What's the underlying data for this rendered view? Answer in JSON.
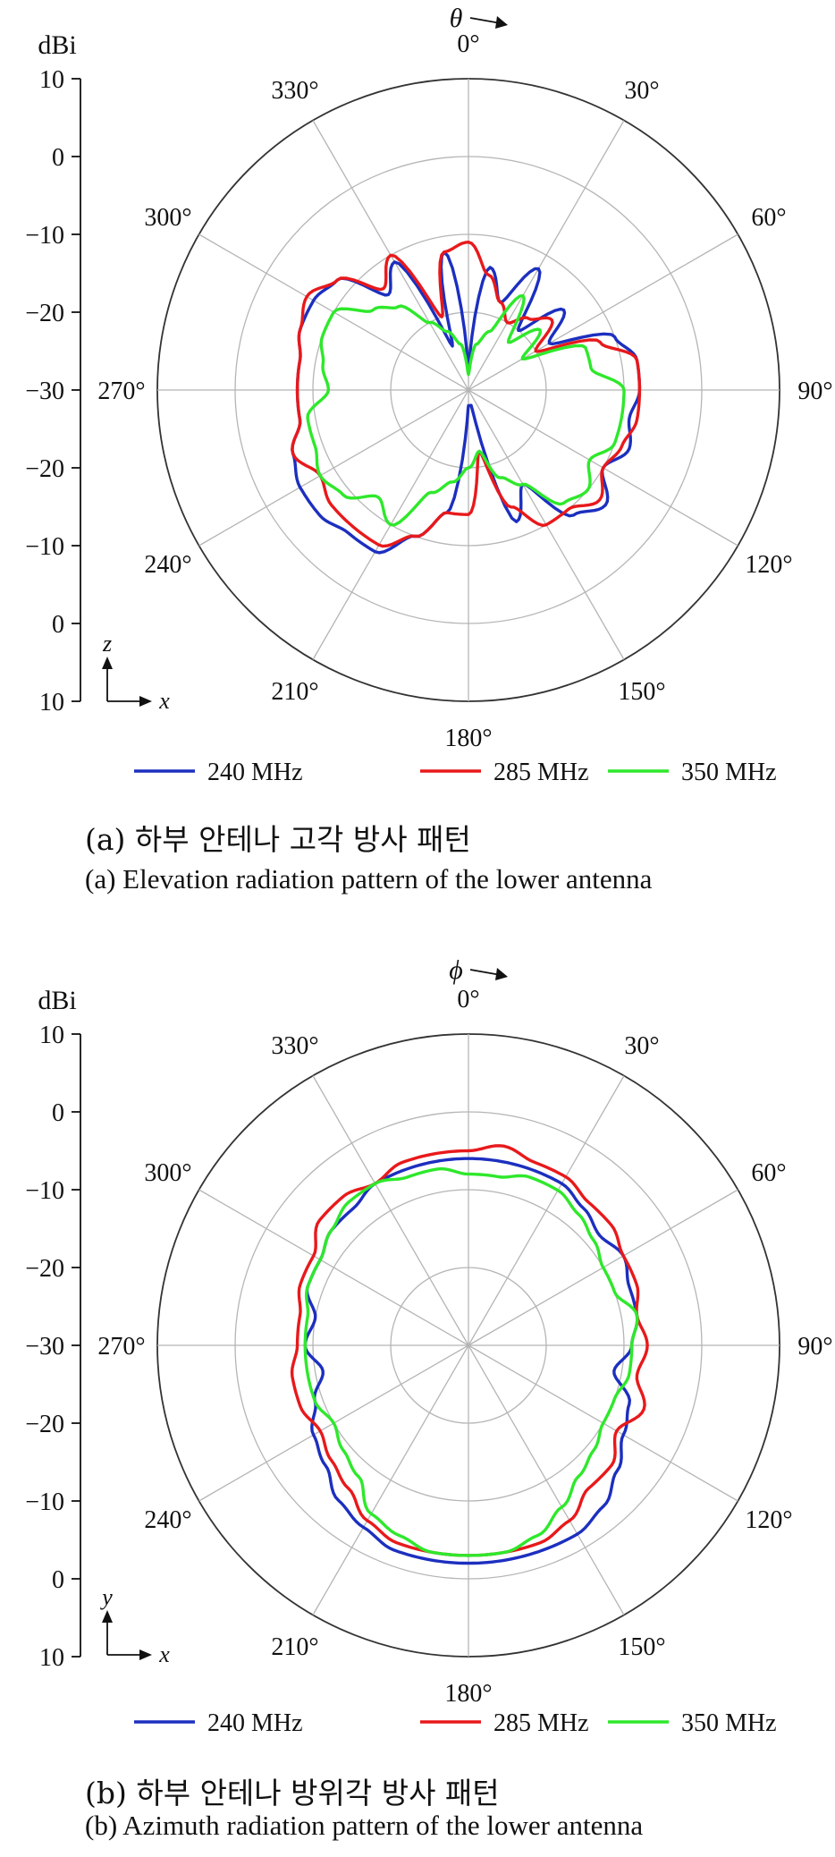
{
  "chart_data": [
    {
      "type": "polar-line",
      "id": "a",
      "angle_symbol": "θ",
      "unit_label": "dBi",
      "radial_ticks": [
        "10",
        "0",
        "−10",
        "−20",
        "−30",
        "−20",
        "−10",
        "0",
        "10"
      ],
      "radial_range": [
        -30,
        10
      ],
      "angle_labels": [
        "0°",
        "30°",
        "60°",
        "90°",
        "120°",
        "150°",
        "180°",
        "210°",
        "240°",
        "270°",
        "300°",
        "330°"
      ],
      "axis_vertical": "z",
      "axis_horizontal": "x",
      "grid": true,
      "legend_position": "bottom",
      "caption_ko": "(a)  하부  안테나  고각  방사  패턴",
      "caption_en": "(a)  Elevation  radiation  pattern  of  the  lower  antenna",
      "series": [
        {
          "name": "240 MHz",
          "color": "#1c2fbf",
          "angles": [
            0,
            10,
            20,
            30,
            40,
            50,
            60,
            70,
            80,
            90,
            100,
            110,
            120,
            130,
            140,
            150,
            160,
            170,
            180,
            190,
            200,
            210,
            220,
            230,
            240,
            250,
            260,
            270,
            280,
            290,
            300,
            310,
            320,
            330,
            340,
            350
          ],
          "values": [
            -27,
            -14,
            -18,
            -12,
            -20,
            -14,
            -18,
            -10,
            -8,
            -8,
            -9,
            -8,
            -10,
            -7,
            -9,
            -16,
            -12,
            -28,
            -28,
            -14,
            -10,
            -6,
            -6,
            -5,
            -5,
            -6,
            -8,
            -8,
            -8,
            -7,
            -7,
            -8,
            -14,
            -11,
            -24,
            -12
          ]
        },
        {
          "name": "285 MHz",
          "color": "#e8191b",
          "angles": [
            0,
            10,
            20,
            30,
            40,
            50,
            60,
            70,
            80,
            90,
            100,
            110,
            120,
            130,
            140,
            150,
            160,
            170,
            180,
            190,
            200,
            210,
            220,
            230,
            240,
            250,
            260,
            270,
            280,
            290,
            300,
            310,
            320,
            330,
            340,
            350
          ],
          "values": [
            -11,
            -15,
            -18,
            -20,
            -18,
            -16,
            -20,
            -12,
            -8,
            -8,
            -8,
            -9,
            -10,
            -8,
            -10,
            -10,
            -14,
            -22,
            -14,
            -14,
            -10,
            -7,
            -7,
            -7,
            -8,
            -6,
            -8,
            -8,
            -8,
            -7,
            -6,
            -8,
            -13,
            -10,
            -20,
            -12
          ]
        },
        {
          "name": "350 MHz",
          "color": "#2ee82b",
          "angles": [
            0,
            10,
            20,
            30,
            40,
            50,
            60,
            70,
            80,
            90,
            100,
            110,
            120,
            130,
            140,
            150,
            160,
            170,
            180,
            190,
            200,
            210,
            220,
            230,
            240,
            250,
            260,
            270,
            280,
            290,
            300,
            310,
            320,
            330,
            340,
            350
          ],
          "values": [
            -28,
            -24,
            -22,
            -16,
            -22,
            -18,
            -22,
            -14,
            -14,
            -10,
            -10,
            -10,
            -12,
            -10,
            -11,
            -16,
            -18,
            -22,
            -20,
            -18,
            -16,
            -10,
            -12,
            -9,
            -8,
            -9,
            -9,
            -12,
            -11,
            -10,
            -10,
            -14,
            -16,
            -20,
            -22,
            -24
          ]
        }
      ]
    },
    {
      "type": "polar-line",
      "id": "b",
      "angle_symbol": "ϕ",
      "unit_label": "dBi",
      "radial_ticks": [
        "10",
        "0",
        "−10",
        "−20",
        "−30",
        "−20",
        "−10",
        "0",
        "10"
      ],
      "radial_range": [
        -30,
        10
      ],
      "angle_labels": [
        "0°",
        "30°",
        "60°",
        "90°",
        "120°",
        "150°",
        "180°",
        "210°",
        "240°",
        "270°",
        "300°",
        "330°"
      ],
      "axis_vertical": "y",
      "axis_horizontal": "x",
      "grid": true,
      "legend_position": "bottom",
      "caption_ko": "(b)  하부  안테나  방위각  방사  패턴",
      "caption_en": "(b)  Azimuth  radiation  pattern  of  the  lower  antenna",
      "series": [
        {
          "name": "240 MHz",
          "color": "#1c2fbf",
          "angles": [
            0,
            10,
            20,
            30,
            40,
            50,
            60,
            70,
            80,
            90,
            100,
            110,
            120,
            130,
            140,
            150,
            160,
            170,
            180,
            190,
            200,
            210,
            220,
            230,
            240,
            250,
            260,
            270,
            280,
            290,
            300,
            310,
            320,
            330,
            340,
            350
          ],
          "values": [
            -6,
            -6,
            -6,
            -6,
            -7,
            -8,
            -7,
            -8,
            -8,
            -9,
            -11,
            -8,
            -7,
            -5,
            -3,
            -2,
            -2,
            -2,
            -2,
            -2,
            -2,
            -3,
            -4,
            -6,
            -7,
            -9,
            -11,
            -9,
            -10,
            -8,
            -8,
            -7,
            -7,
            -6,
            -6,
            -6
          ]
        },
        {
          "name": "285 MHz",
          "color": "#e8191b",
          "angles": [
            0,
            10,
            20,
            30,
            40,
            50,
            60,
            70,
            80,
            90,
            100,
            110,
            120,
            130,
            140,
            150,
            160,
            170,
            180,
            190,
            200,
            210,
            220,
            230,
            240,
            250,
            260,
            270,
            280,
            290,
            300,
            310,
            320,
            330,
            340,
            350
          ],
          "values": [
            -5,
            -4,
            -5,
            -5,
            -6,
            -6,
            -7,
            -7,
            -8,
            -7,
            -8,
            -6,
            -8,
            -6,
            -6,
            -4,
            -3,
            -3,
            -3,
            -3,
            -3,
            -4,
            -6,
            -7,
            -8,
            -7,
            -7,
            -8,
            -8,
            -7,
            -7,
            -5,
            -5,
            -6,
            -5,
            -5
          ]
        },
        {
          "name": "350 MHz",
          "color": "#2ee82b",
          "angles": [
            0,
            10,
            20,
            30,
            40,
            50,
            60,
            70,
            80,
            90,
            100,
            110,
            120,
            130,
            140,
            150,
            160,
            170,
            180,
            190,
            200,
            210,
            220,
            230,
            240,
            250,
            260,
            270,
            280,
            290,
            300,
            310,
            320,
            330,
            340,
            350
          ],
          "values": [
            -8,
            -8,
            -7,
            -7,
            -8,
            -9,
            -10,
            -10,
            -8,
            -9,
            -9,
            -10,
            -10,
            -9,
            -8,
            -6,
            -4,
            -3,
            -3,
            -3,
            -4,
            -5,
            -8,
            -9,
            -10,
            -9,
            -9,
            -9,
            -9,
            -8,
            -8,
            -7,
            -6,
            -6,
            -7,
            -7
          ]
        }
      ]
    }
  ]
}
